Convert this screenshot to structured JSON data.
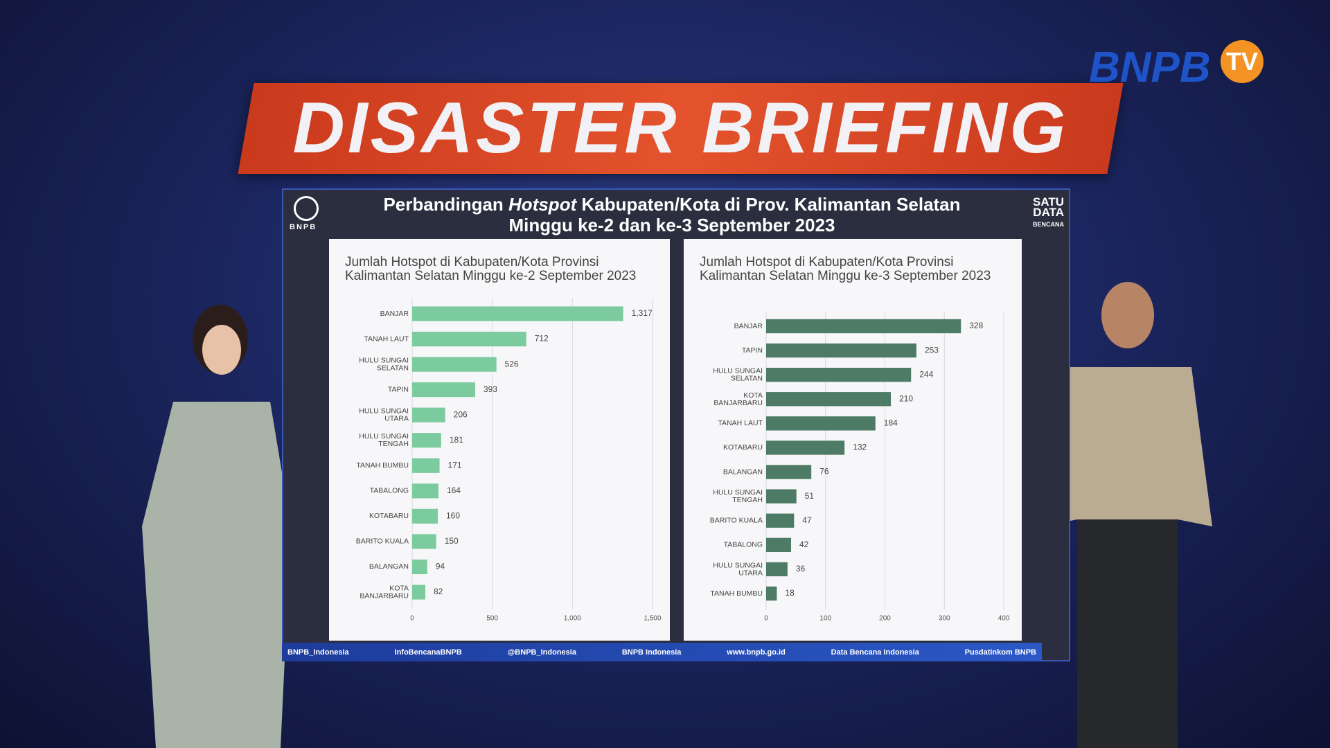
{
  "banner": "DISASTER BRIEFING",
  "channel_logo": {
    "name": "BNPB",
    "suffix": "TV"
  },
  "header": {
    "logo": "BNPB",
    "line1": [
      "Perbandingan ",
      "Hotspot",
      " Kabupaten/Kota di Prov. Kalimantan Selatan"
    ],
    "line2": "Minggu ke-2 dan ke-3 September 2023",
    "right_logo": [
      "SATU",
      "DATA",
      "BENCANA"
    ]
  },
  "footer": [
    "BNPB_Indonesia",
    "InfoBencanaBNPB",
    "@BNPB_Indonesia",
    "BNPB Indonesia",
    "www.bnpb.go.id",
    "Data Bencana Indonesia",
    "Pusdatinkom BNPB"
  ],
  "chart_data": [
    {
      "type": "hbar",
      "title": "Jumlah Hotspot di Kabupaten/Kota Provinsi Kalimantan Selatan Minggu ke-2 September 2023",
      "categories": [
        "BANJAR",
        "TANAH LAUT",
        "HULU SUNGAI\nSELATAN",
        "TAPIN",
        "HULU SUNGAI\nUTARA",
        "HULU SUNGAI\nTENGAH",
        "TANAH BUMBU",
        "TABALONG",
        "KOTABARU",
        "BARITO KUALA",
        "BALANGAN",
        "KOTA\nBANJARBARU"
      ],
      "values": [
        1317,
        712,
        526,
        393,
        206,
        181,
        171,
        164,
        160,
        150,
        94,
        82
      ],
      "value_labels": [
        "1,317",
        "712",
        "526",
        "393",
        "206",
        "181",
        "171",
        "164",
        "160",
        "150",
        "94",
        "82"
      ],
      "color": "#7ccb9f",
      "xlim": [
        0,
        1500
      ],
      "xticks": [
        0,
        500,
        {
          "value": 1000,
          "label": "1,000"
        },
        {
          "value": 1500,
          "label": "1,500"
        }
      ],
      "grid": true
    },
    {
      "type": "hbar",
      "title": "Jumlah Hotspot di Kabupaten/Kota Provinsi Kalimantan Selatan Minggu ke-3 September 2023",
      "categories": [
        "BANJAR",
        "TAPIN",
        "HULU SUNGAI\nSELATAN",
        "KOTA\nBANJARBARU",
        "TANAH LAUT",
        "KOTABARU",
        "BALANGAN",
        "HULU SUNGAI\nTENGAH",
        "BARITO KUALA",
        "TABALONG",
        "HULU SUNGAI\nUTARA",
        "TANAH BUMBU"
      ],
      "values": [
        328,
        253,
        244,
        210,
        184,
        132,
        76,
        51,
        47,
        42,
        36,
        18
      ],
      "color": "#4d7b66",
      "xlim": [
        0,
        400
      ],
      "xticks": [
        0,
        100,
        200,
        300,
        400
      ],
      "grid": true
    }
  ]
}
